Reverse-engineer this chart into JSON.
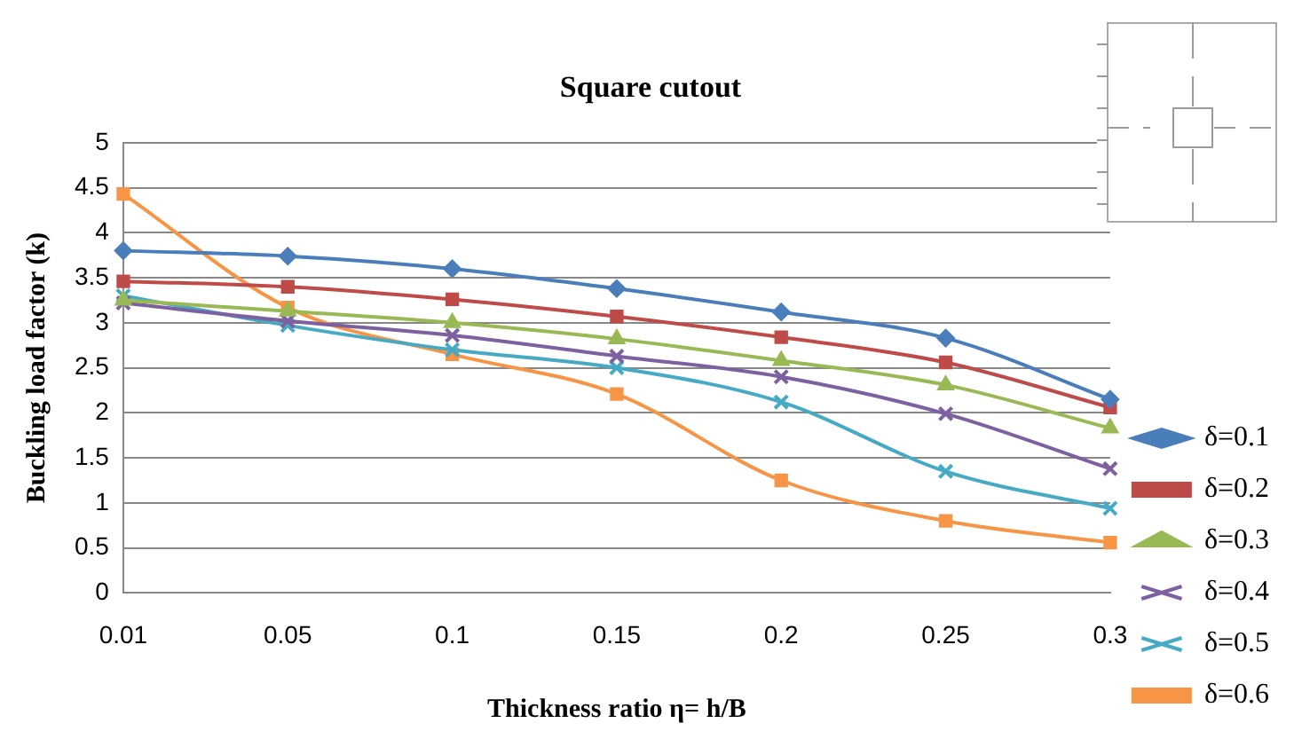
{
  "chart_data": {
    "type": "line",
    "title": "Square cutout",
    "xlabel": "Thickness ratio η= h/B",
    "ylabel": "Buckling load factor (k)",
    "categories": [
      "0.01",
      "0.05",
      "0.1",
      "0.15",
      "0.2",
      "0.25",
      "0.3"
    ],
    "ylim": [
      0,
      5
    ],
    "yticks": [
      0,
      0.5,
      1,
      1.5,
      2,
      2.5,
      3,
      3.5,
      4,
      4.5,
      5
    ],
    "grid": "y",
    "legend": "right",
    "series": [
      {
        "name": "δ=0.1",
        "color": "#4a7ebb",
        "marker": "diamond",
        "values": [
          3.8,
          3.74,
          3.6,
          3.38,
          3.12,
          2.83,
          2.15
        ]
      },
      {
        "name": "δ=0.2",
        "color": "#be4b48",
        "marker": "square",
        "values": [
          3.46,
          3.4,
          3.26,
          3.07,
          2.84,
          2.56,
          2.06
        ]
      },
      {
        "name": "δ=0.3",
        "color": "#98b954",
        "marker": "triangle",
        "values": [
          3.25,
          3.13,
          3.0,
          2.82,
          2.58,
          2.31,
          1.83
        ]
      },
      {
        "name": "δ=0.4",
        "color": "#7d60a0",
        "marker": "cross",
        "values": [
          3.22,
          3.02,
          2.86,
          2.63,
          2.4,
          1.99,
          1.38
        ]
      },
      {
        "name": "δ=0.5",
        "color": "#46aac5",
        "marker": "cross",
        "values": [
          3.3,
          2.97,
          2.7,
          2.5,
          2.12,
          1.35,
          0.94
        ]
      },
      {
        "name": "δ=0.6",
        "color": "#f69546",
        "marker": "square",
        "values": [
          4.43,
          3.17,
          2.65,
          2.21,
          1.25,
          0.8,
          0.56
        ]
      }
    ]
  }
}
